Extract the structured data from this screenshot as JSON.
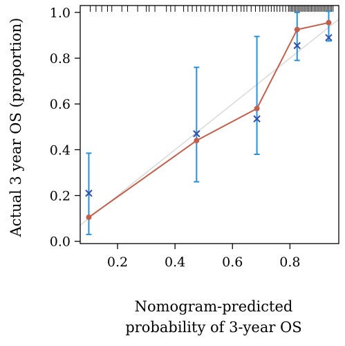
{
  "chart_data": {
    "type": "scatter",
    "title": "",
    "xlabel_line1": "Nomogram-predicted",
    "xlabel_line2": "probability of 3-year OS",
    "ylabel": "Actual 3 year OS (proportion)",
    "xlim": [
      0.07,
      0.97
    ],
    "ylim": [
      -0.01,
      1.03
    ],
    "x_ticks": [
      "0.2",
      "0.4",
      "0.6",
      "0.8"
    ],
    "x_tick_values": [
      0.2,
      0.4,
      0.6,
      0.8
    ],
    "y_ticks": [
      "0.0",
      "0.2",
      "0.4",
      "0.6",
      "0.8",
      "1.0"
    ],
    "y_tick_values": [
      0.0,
      0.2,
      0.4,
      0.6,
      0.8,
      1.0
    ],
    "grid": false,
    "reference_line": {
      "from": [
        0.07,
        0.07
      ],
      "to": [
        0.97,
        0.97
      ],
      "color": "#d9d9d9"
    },
    "series": [
      {
        "type": "line-points",
        "color": "#c0604c",
        "x": [
          0.1,
          0.475,
          0.685,
          0.825,
          0.935
        ],
        "y": [
          0.105,
          0.44,
          0.58,
          0.925,
          0.955
        ]
      },
      {
        "type": "cross-errorbar",
        "color": "#2f4faa",
        "error_color": "#2b8fd6",
        "x": [
          0.1,
          0.475,
          0.685,
          0.825,
          0.935
        ],
        "y": [
          0.21,
          0.47,
          0.535,
          0.855,
          0.89
        ],
        "lower": [
          0.03,
          0.26,
          0.38,
          0.79,
          0.875
        ],
        "upper": [
          0.385,
          0.76,
          0.895,
          1.0,
          1.005
        ]
      }
    ],
    "rug": [
      0.105,
      0.125,
      0.145,
      0.165,
      0.18,
      0.215,
      0.235,
      0.27,
      0.3,
      0.31,
      0.33,
      0.37,
      0.385,
      0.4,
      0.43,
      0.445,
      0.46,
      0.475,
      0.49,
      0.505,
      0.52,
      0.535,
      0.55,
      0.565,
      0.58,
      0.6,
      0.615,
      0.63,
      0.64,
      0.65,
      0.665,
      0.68,
      0.695,
      0.705,
      0.715,
      0.725,
      0.735,
      0.745,
      0.755,
      0.765,
      0.775,
      0.785,
      0.795,
      0.8,
      0.805,
      0.81,
      0.815,
      0.82,
      0.825,
      0.83,
      0.835,
      0.84,
      0.845,
      0.85,
      0.855,
      0.86,
      0.865,
      0.87,
      0.875,
      0.88,
      0.885,
      0.89,
      0.895,
      0.9,
      0.905,
      0.91,
      0.915,
      0.92,
      0.925,
      0.93,
      0.935,
      0.94,
      0.945,
      0.95
    ]
  }
}
